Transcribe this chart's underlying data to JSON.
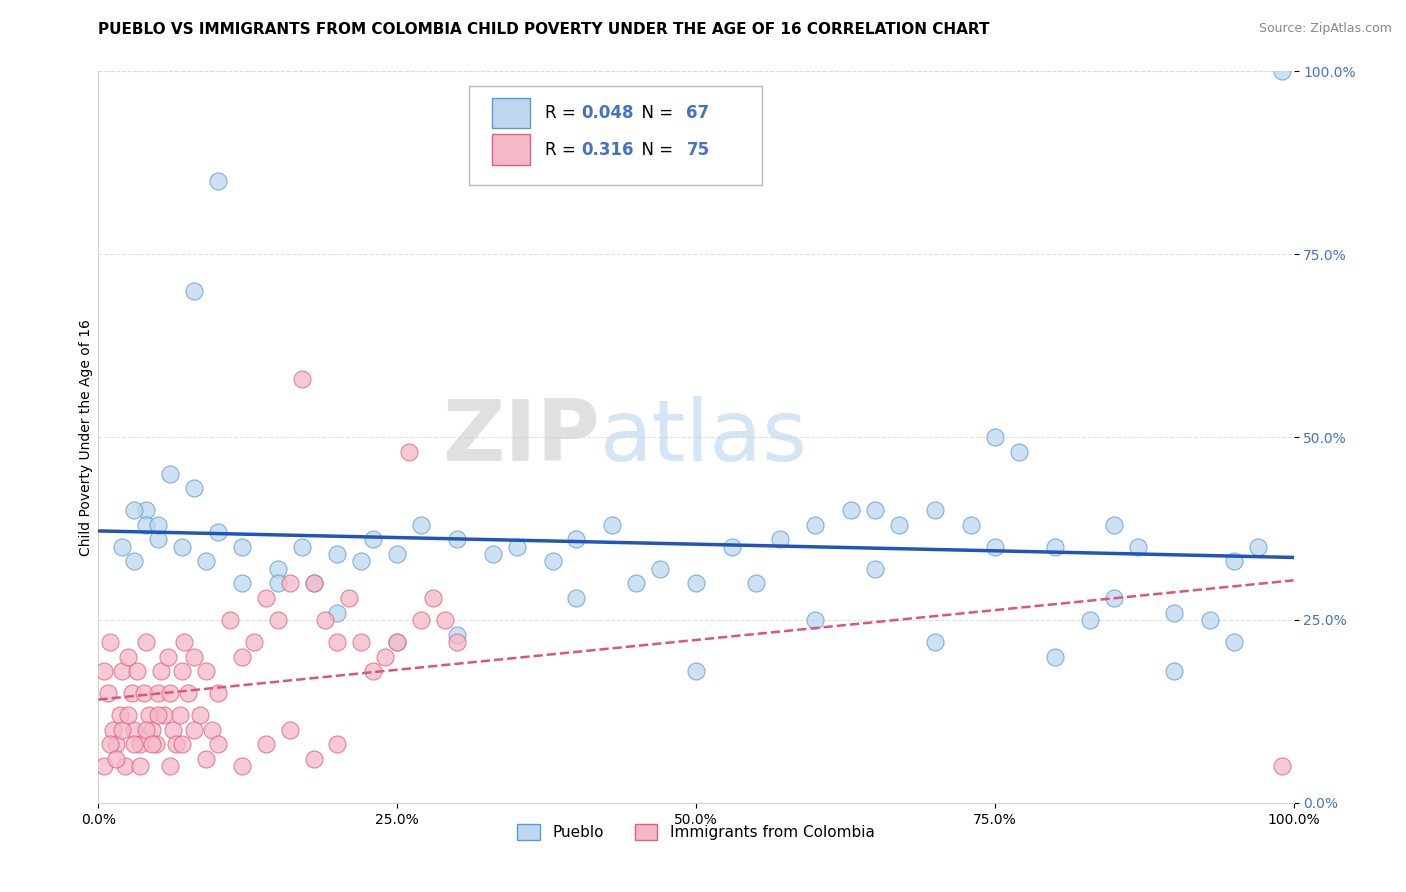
{
  "title": "PUEBLO VS IMMIGRANTS FROM COLOMBIA CHILD POVERTY UNDER THE AGE OF 16 CORRELATION CHART",
  "source": "Source: ZipAtlas.com",
  "ylabel": "Child Poverty Under the Age of 16",
  "xlim": [
    0,
    1
  ],
  "ylim": [
    0,
    1
  ],
  "xticks": [
    0.0,
    0.25,
    0.5,
    0.75,
    1.0
  ],
  "yticks": [
    0.0,
    0.25,
    0.5,
    0.75,
    1.0
  ],
  "xticklabels": [
    "0.0%",
    "25.0%",
    "50.0%",
    "75.0%",
    "100.0%"
  ],
  "yticklabels": [
    "0.0%",
    "25.0%",
    "50.0%",
    "75.0%",
    "100.0%"
  ],
  "pueblo_color": "#bdd7ee",
  "colombia_color": "#f4b8c8",
  "pueblo_edge": "#5b9bd5",
  "colombia_edge": "#e06080",
  "trend_blue": "#2255bb",
  "trend_pink": "#dd5577",
  "axis_tick_color": "#4472c4",
  "R_pueblo": 0.048,
  "N_pueblo": 67,
  "R_colombia": 0.316,
  "N_colombia": 75,
  "legend_label_pueblo": "Pueblo",
  "legend_label_colombia": "Immigrants from Colombia",
  "watermark_left": "ZIP",
  "watermark_right": "atlas",
  "title_fontsize": 11,
  "axis_label_fontsize": 10,
  "tick_fontsize": 10,
  "pueblo_x": [
    0.02,
    0.04,
    0.04,
    0.08,
    0.1,
    0.17,
    0.22,
    0.27,
    0.33,
    0.38,
    0.4,
    0.43,
    0.47,
    0.5,
    0.53,
    0.57,
    0.6,
    0.63,
    0.65,
    0.67,
    0.7,
    0.73,
    0.75,
    0.77,
    0.8,
    0.83,
    0.85,
    0.87,
    0.9,
    0.93,
    0.95,
    0.97,
    0.99,
    0.03,
    0.05,
    0.07,
    0.09,
    0.12,
    0.15,
    0.2,
    0.25,
    0.3,
    0.35,
    0.45,
    0.55,
    0.65,
    0.75,
    0.85,
    0.95,
    0.03,
    0.06,
    0.1,
    0.15,
    0.2,
    0.25,
    0.3,
    0.4,
    0.5,
    0.6,
    0.7,
    0.8,
    0.9,
    0.05,
    0.08,
    0.12,
    0.18,
    0.23
  ],
  "pueblo_y": [
    0.35,
    0.4,
    0.38,
    0.7,
    0.85,
    0.35,
    0.33,
    0.38,
    0.34,
    0.33,
    0.36,
    0.38,
    0.32,
    0.18,
    0.35,
    0.36,
    0.38,
    0.4,
    0.4,
    0.38,
    0.4,
    0.38,
    0.5,
    0.48,
    0.35,
    0.25,
    0.28,
    0.35,
    0.26,
    0.25,
    0.22,
    0.35,
    1.0,
    0.33,
    0.36,
    0.35,
    0.33,
    0.3,
    0.32,
    0.34,
    0.34,
    0.36,
    0.35,
    0.3,
    0.3,
    0.32,
    0.35,
    0.38,
    0.33,
    0.4,
    0.45,
    0.37,
    0.3,
    0.26,
    0.22,
    0.23,
    0.28,
    0.3,
    0.25,
    0.22,
    0.2,
    0.18,
    0.38,
    0.43,
    0.35,
    0.3,
    0.36
  ],
  "colombia_x": [
    0.005,
    0.008,
    0.01,
    0.012,
    0.015,
    0.018,
    0.02,
    0.022,
    0.025,
    0.028,
    0.03,
    0.032,
    0.035,
    0.038,
    0.04,
    0.042,
    0.045,
    0.048,
    0.05,
    0.052,
    0.055,
    0.058,
    0.06,
    0.062,
    0.065,
    0.068,
    0.07,
    0.072,
    0.075,
    0.08,
    0.085,
    0.09,
    0.095,
    0.1,
    0.11,
    0.12,
    0.13,
    0.14,
    0.15,
    0.16,
    0.17,
    0.18,
    0.19,
    0.2,
    0.21,
    0.22,
    0.23,
    0.24,
    0.25,
    0.26,
    0.27,
    0.28,
    0.29,
    0.3,
    0.005,
    0.01,
    0.015,
    0.02,
    0.025,
    0.03,
    0.035,
    0.04,
    0.045,
    0.05,
    0.06,
    0.07,
    0.08,
    0.09,
    0.1,
    0.12,
    0.14,
    0.16,
    0.18,
    0.2,
    0.99
  ],
  "colombia_y": [
    0.18,
    0.15,
    0.22,
    0.1,
    0.08,
    0.12,
    0.18,
    0.05,
    0.2,
    0.15,
    0.1,
    0.18,
    0.08,
    0.15,
    0.22,
    0.12,
    0.1,
    0.08,
    0.15,
    0.18,
    0.12,
    0.2,
    0.15,
    0.1,
    0.08,
    0.12,
    0.18,
    0.22,
    0.15,
    0.2,
    0.12,
    0.18,
    0.1,
    0.15,
    0.25,
    0.2,
    0.22,
    0.28,
    0.25,
    0.3,
    0.58,
    0.3,
    0.25,
    0.22,
    0.28,
    0.22,
    0.18,
    0.2,
    0.22,
    0.48,
    0.25,
    0.28,
    0.25,
    0.22,
    0.05,
    0.08,
    0.06,
    0.1,
    0.12,
    0.08,
    0.05,
    0.1,
    0.08,
    0.12,
    0.05,
    0.08,
    0.1,
    0.06,
    0.08,
    0.05,
    0.08,
    0.1,
    0.06,
    0.08,
    0.05
  ]
}
